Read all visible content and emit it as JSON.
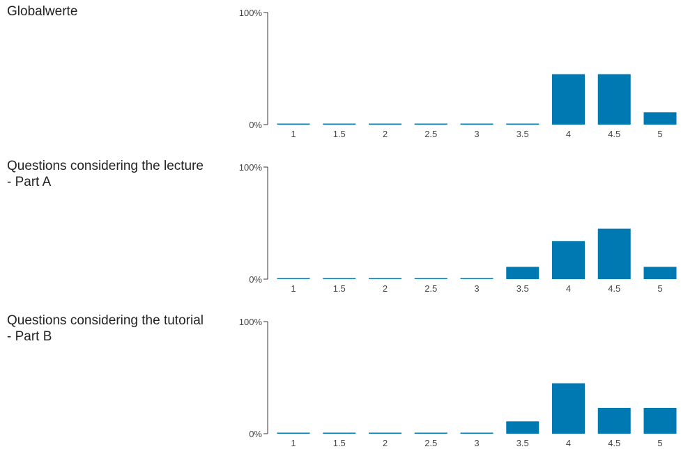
{
  "colors": {
    "bar": "#0079B3",
    "axis": "#333333",
    "text": "#444444"
  },
  "chart_data": [
    {
      "type": "bar",
      "title": "Globalwerte",
      "categories": [
        "1",
        "1.5",
        "2",
        "2.5",
        "3",
        "3.5",
        "4",
        "4.5",
        "5"
      ],
      "values": [
        0,
        0,
        0,
        0,
        0,
        0,
        45,
        45,
        11
      ],
      "y_ticks": [
        "100%",
        "0%"
      ],
      "ylim": [
        0,
        100
      ],
      "grid": false
    },
    {
      "type": "bar",
      "title": "Questions considering the lecture\n- Part A",
      "categories": [
        "1",
        "1.5",
        "2",
        "2.5",
        "3",
        "3.5",
        "4",
        "4.5",
        "5"
      ],
      "values": [
        0,
        0,
        0,
        0,
        0,
        11,
        34,
        45,
        11
      ],
      "y_ticks": [
        "100%",
        "0%"
      ],
      "ylim": [
        0,
        100
      ],
      "grid": false
    },
    {
      "type": "bar",
      "title": "Questions considering the tutorial\n- Part B",
      "categories": [
        "1",
        "1.5",
        "2",
        "2.5",
        "3",
        "3.5",
        "4",
        "4.5",
        "5"
      ],
      "values": [
        0,
        0,
        0,
        0,
        0,
        11,
        45,
        23,
        23
      ],
      "y_ticks": [
        "100%",
        "0%"
      ],
      "ylim": [
        0,
        100
      ],
      "grid": false
    }
  ]
}
